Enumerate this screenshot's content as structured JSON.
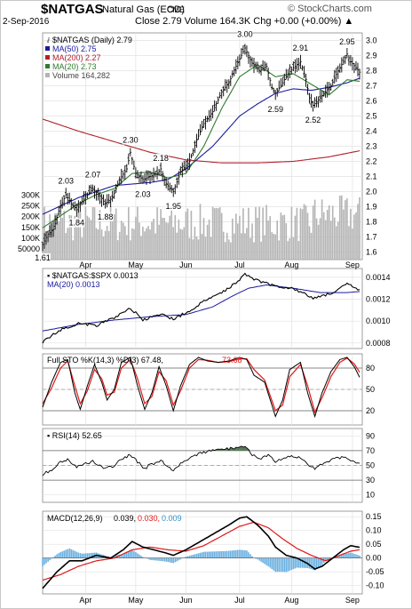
{
  "header": {
    "symbol": "$NATGAS",
    "name": "Natural Gas (EOD)",
    "exchange": "CME",
    "watermark": "© StockCharts.com",
    "date": "2-Sep-2016",
    "stats": "Close 2.79   Volume 164.3K   Chg +0.00 (+0.00%) ▲"
  },
  "colors": {
    "price": "#000000",
    "ma50": "#1a1aa0",
    "ma200": "#b0202c",
    "ma20": "#2e7a2e",
    "volume": "#b4b4b4",
    "ratio": "#000000",
    "stoK": "#000000",
    "stoD": "#e01818",
    "rsi": "#000000",
    "macd": "#000000",
    "signal": "#e01818",
    "hist": "#6ab0e0"
  },
  "x_labels": [
    "Apr",
    "May",
    "Jun",
    "Jul",
    "Aug",
    "Sep"
  ],
  "chart_data": [
    {
      "type": "line",
      "panel": "price",
      "legend": [
        "$NATGAS (Daily) 2.79",
        "MA(50) 2.75",
        "MA(200) 2.27",
        "MA(20) 2.73",
        "Volume 164,282"
      ],
      "yticks": [
        1.6,
        1.7,
        1.8,
        1.9,
        2.0,
        2.1,
        2.2,
        2.3,
        2.4,
        2.5,
        2.6,
        2.7,
        2.8,
        2.9,
        3.0
      ],
      "ylim": [
        1.55,
        3.05
      ],
      "volume_ticks": [
        "300K",
        "250K",
        "200K",
        "150K",
        "100K",
        "50000"
      ],
      "volume_tick_values": [
        300000,
        250000,
        200000,
        150000,
        100000,
        50000
      ],
      "volume_max": 360000,
      "annotations": [
        {
          "label": "1.61",
          "i": 0,
          "v": 1.61,
          "pos": "below"
        },
        {
          "label": "2.03",
          "i": 13,
          "v": 2.03,
          "pos": "above"
        },
        {
          "label": "1.84",
          "i": 19,
          "v": 1.84,
          "pos": "below"
        },
        {
          "label": "2.07",
          "i": 28,
          "v": 2.07,
          "pos": "above"
        },
        {
          "label": "1.88",
          "i": 35,
          "v": 1.88,
          "pos": "below"
        },
        {
          "label": "2.30",
          "i": 49,
          "v": 2.3,
          "pos": "above"
        },
        {
          "label": "2.03",
          "i": 56,
          "v": 2.03,
          "pos": "below"
        },
        {
          "label": "2.18",
          "i": 66,
          "v": 2.18,
          "pos": "above"
        },
        {
          "label": "1.95",
          "i": 73,
          "v": 1.95,
          "pos": "below"
        },
        {
          "label": "3.00",
          "i": 113,
          "v": 3.0,
          "pos": "above"
        },
        {
          "label": "2.59",
          "i": 130,
          "v": 2.59,
          "pos": "below"
        },
        {
          "label": "2.91",
          "i": 144,
          "v": 2.91,
          "pos": "above"
        },
        {
          "label": "2.52",
          "i": 151,
          "v": 2.52,
          "pos": "below"
        },
        {
          "label": "2.95",
          "i": 170,
          "v": 2.95,
          "pos": "above"
        }
      ],
      "anchors": [
        [
          0,
          1.65
        ],
        [
          3,
          1.72
        ],
        [
          6,
          1.75
        ],
        [
          9,
          1.87
        ],
        [
          13,
          1.98
        ],
        [
          16,
          1.92
        ],
        [
          19,
          1.88
        ],
        [
          23,
          1.95
        ],
        [
          28,
          2.02
        ],
        [
          32,
          1.97
        ],
        [
          35,
          1.92
        ],
        [
          39,
          1.96
        ],
        [
          43,
          2.08
        ],
        [
          47,
          2.15
        ],
        [
          49,
          2.26
        ],
        [
          52,
          2.12
        ],
        [
          56,
          2.08
        ],
        [
          60,
          2.1
        ],
        [
          64,
          2.12
        ],
        [
          66,
          2.15
        ],
        [
          69,
          2.05
        ],
        [
          73,
          2.0
        ],
        [
          77,
          2.13
        ],
        [
          82,
          2.2
        ],
        [
          86,
          2.34
        ],
        [
          90,
          2.45
        ],
        [
          95,
          2.53
        ],
        [
          100,
          2.66
        ],
        [
          104,
          2.72
        ],
        [
          108,
          2.83
        ],
        [
          113,
          2.95
        ],
        [
          117,
          2.85
        ],
        [
          121,
          2.8
        ],
        [
          125,
          2.83
        ],
        [
          128,
          2.69
        ],
        [
          130,
          2.65
        ],
        [
          134,
          2.72
        ],
        [
          137,
          2.78
        ],
        [
          140,
          2.82
        ],
        [
          144,
          2.86
        ],
        [
          147,
          2.74
        ],
        [
          149,
          2.62
        ],
        [
          151,
          2.57
        ],
        [
          155,
          2.62
        ],
        [
          158,
          2.66
        ],
        [
          161,
          2.7
        ],
        [
          165,
          2.8
        ],
        [
          168,
          2.86
        ],
        [
          170,
          2.91
        ],
        [
          172,
          2.86
        ],
        [
          175,
          2.82
        ],
        [
          177,
          2.79
        ]
      ],
      "ma50": [
        [
          0,
          1.85
        ],
        [
          20,
          1.96
        ],
        [
          40,
          2.04
        ],
        [
          60,
          2.06
        ],
        [
          70,
          2.08
        ],
        [
          80,
          2.15
        ],
        [
          95,
          2.3
        ],
        [
          110,
          2.5
        ],
        [
          120,
          2.58
        ],
        [
          130,
          2.65
        ],
        [
          140,
          2.68
        ],
        [
          150,
          2.67
        ],
        [
          160,
          2.69
        ],
        [
          170,
          2.72
        ],
        [
          177,
          2.75
        ]
      ],
      "ma200": [
        [
          0,
          2.48
        ],
        [
          20,
          2.4
        ],
        [
          40,
          2.33
        ],
        [
          60,
          2.26
        ],
        [
          80,
          2.21
        ],
        [
          100,
          2.19
        ],
        [
          120,
          2.19
        ],
        [
          140,
          2.2
        ],
        [
          160,
          2.23
        ],
        [
          177,
          2.27
        ]
      ],
      "ma20": [
        [
          0,
          1.76
        ],
        [
          10,
          1.84
        ],
        [
          20,
          1.92
        ],
        [
          30,
          1.98
        ],
        [
          40,
          2.02
        ],
        [
          50,
          2.12
        ],
        [
          60,
          2.13
        ],
        [
          70,
          2.09
        ],
        [
          80,
          2.12
        ],
        [
          90,
          2.3
        ],
        [
          100,
          2.55
        ],
        [
          110,
          2.76
        ],
        [
          120,
          2.84
        ],
        [
          130,
          2.76
        ],
        [
          140,
          2.78
        ],
        [
          150,
          2.71
        ],
        [
          160,
          2.64
        ],
        [
          170,
          2.74
        ],
        [
          177,
          2.73
        ]
      ]
    },
    {
      "type": "line",
      "panel": "ratio",
      "legend": [
        "$NATGAS:$SPX 0.0013",
        "MA(20) 0.0013"
      ],
      "yticks": [
        0.0008,
        0.001,
        0.0012,
        0.0014
      ],
      "yticklabels": [
        "0.0008",
        "0.0010",
        "0.0012",
        "0.0014"
      ],
      "ylim": [
        0.00075,
        0.00148
      ],
      "anchors": [
        [
          0,
          0.00081
        ],
        [
          10,
          0.00092
        ],
        [
          20,
          0.00098
        ],
        [
          30,
          0.00096
        ],
        [
          40,
          0.00103
        ],
        [
          49,
          0.00112
        ],
        [
          56,
          0.00101
        ],
        [
          66,
          0.00106
        ],
        [
          73,
          0.00102
        ],
        [
          82,
          0.00109
        ],
        [
          90,
          0.00118
        ],
        [
          100,
          0.00126
        ],
        [
          108,
          0.00135
        ],
        [
          113,
          0.00143
        ],
        [
          120,
          0.00137
        ],
        [
          130,
          0.00132
        ],
        [
          140,
          0.0013
        ],
        [
          147,
          0.00124
        ],
        [
          151,
          0.00121
        ],
        [
          158,
          0.00124
        ],
        [
          165,
          0.00128
        ],
        [
          170,
          0.00134
        ],
        [
          177,
          0.00128
        ]
      ],
      "ma": [
        [
          0,
          0.00091
        ],
        [
          20,
          0.00097
        ],
        [
          40,
          0.00101
        ],
        [
          60,
          0.00104
        ],
        [
          80,
          0.00106
        ],
        [
          95,
          0.00113
        ],
        [
          105,
          0.00122
        ],
        [
          115,
          0.0013
        ],
        [
          125,
          0.00133
        ],
        [
          140,
          0.0013
        ],
        [
          155,
          0.00126
        ],
        [
          170,
          0.00126
        ],
        [
          177,
          0.00127
        ]
      ]
    },
    {
      "type": "line",
      "panel": "stochastic",
      "legend": [
        "Full STO %K(14,3) %D(3) 67.48,",
        "73.68"
      ],
      "yticks": [
        20,
        50,
        80
      ],
      "ylim": [
        0,
        100
      ],
      "hlines": [
        80,
        50,
        20
      ],
      "k": [
        [
          0,
          25
        ],
        [
          5,
          60
        ],
        [
          10,
          88
        ],
        [
          14,
          92
        ],
        [
          18,
          45
        ],
        [
          21,
          22
        ],
        [
          25,
          55
        ],
        [
          29,
          85
        ],
        [
          33,
          60
        ],
        [
          36,
          35
        ],
        [
          40,
          50
        ],
        [
          44,
          88
        ],
        [
          49,
          95
        ],
        [
          53,
          55
        ],
        [
          57,
          22
        ],
        [
          61,
          45
        ],
        [
          65,
          82
        ],
        [
          69,
          55
        ],
        [
          73,
          20
        ],
        [
          77,
          55
        ],
        [
          82,
          85
        ],
        [
          87,
          95
        ],
        [
          92,
          90
        ],
        [
          98,
          88
        ],
        [
          104,
          90
        ],
        [
          110,
          95
        ],
        [
          114,
          92
        ],
        [
          118,
          70
        ],
        [
          124,
          60
        ],
        [
          130,
          12
        ],
        [
          134,
          35
        ],
        [
          138,
          78
        ],
        [
          144,
          88
        ],
        [
          148,
          45
        ],
        [
          152,
          12
        ],
        [
          156,
          45
        ],
        [
          161,
          75
        ],
        [
          166,
          92
        ],
        [
          170,
          95
        ],
        [
          174,
          82
        ],
        [
          177,
          67
        ]
      ],
      "d": [
        [
          0,
          30
        ],
        [
          5,
          52
        ],
        [
          10,
          80
        ],
        [
          14,
          90
        ],
        [
          18,
          55
        ],
        [
          21,
          30
        ],
        [
          25,
          48
        ],
        [
          29,
          78
        ],
        [
          33,
          65
        ],
        [
          36,
          42
        ],
        [
          40,
          46
        ],
        [
          44,
          80
        ],
        [
          49,
          92
        ],
        [
          53,
          65
        ],
        [
          57,
          30
        ],
        [
          61,
          40
        ],
        [
          65,
          75
        ],
        [
          69,
          62
        ],
        [
          73,
          28
        ],
        [
          77,
          48
        ],
        [
          82,
          80
        ],
        [
          87,
          92
        ],
        [
          92,
          91
        ],
        [
          98,
          88
        ],
        [
          104,
          89
        ],
        [
          110,
          93
        ],
        [
          114,
          93
        ],
        [
          118,
          78
        ],
        [
          124,
          63
        ],
        [
          130,
          20
        ],
        [
          134,
          28
        ],
        [
          138,
          68
        ],
        [
          144,
          85
        ],
        [
          148,
          55
        ],
        [
          152,
          18
        ],
        [
          156,
          38
        ],
        [
          161,
          68
        ],
        [
          166,
          88
        ],
        [
          170,
          94
        ],
        [
          174,
          86
        ],
        [
          177,
          74
        ]
      ]
    },
    {
      "type": "line",
      "panel": "rsi",
      "legend": [
        "RSI(14) 52.65"
      ],
      "yticks": [
        10,
        30,
        50,
        70,
        90
      ],
      "ylim": [
        0,
        100
      ],
      "hlines": [
        70,
        50,
        30
      ],
      "values": [
        [
          0,
          38
        ],
        [
          6,
          45
        ],
        [
          10,
          55
        ],
        [
          14,
          58
        ],
        [
          19,
          48
        ],
        [
          24,
          52
        ],
        [
          28,
          56
        ],
        [
          32,
          50
        ],
        [
          35,
          45
        ],
        [
          40,
          50
        ],
        [
          44,
          58
        ],
        [
          49,
          64
        ],
        [
          53,
          55
        ],
        [
          57,
          46
        ],
        [
          61,
          52
        ],
        [
          66,
          56
        ],
        [
          70,
          48
        ],
        [
          73,
          44
        ],
        [
          78,
          55
        ],
        [
          84,
          62
        ],
        [
          90,
          68
        ],
        [
          96,
          70
        ],
        [
          102,
          72
        ],
        [
          108,
          74
        ],
        [
          113,
          76
        ],
        [
          117,
          65
        ],
        [
          122,
          60
        ],
        [
          126,
          63
        ],
        [
          130,
          55
        ],
        [
          134,
          58
        ],
        [
          138,
          62
        ],
        [
          144,
          60
        ],
        [
          148,
          52
        ],
        [
          152,
          46
        ],
        [
          156,
          52
        ],
        [
          162,
          58
        ],
        [
          168,
          62
        ],
        [
          172,
          58
        ],
        [
          177,
          53
        ]
      ]
    },
    {
      "type": "line",
      "panel": "macd",
      "legend": [
        "MACD(12,26,9)",
        "0.039,",
        "0.030,",
        "0.009"
      ],
      "yticks": [
        -0.1,
        -0.05,
        0.0,
        0.05,
        0.1,
        0.15
      ],
      "yticklabels": [
        "-0.10",
        "-0.05",
        "0.00",
        "0.05",
        "0.10",
        "0.15"
      ],
      "ylim": [
        -0.13,
        0.17
      ],
      "macd": [
        [
          0,
          -0.11
        ],
        [
          8,
          -0.05
        ],
        [
          15,
          -0.01
        ],
        [
          22,
          -0.01
        ],
        [
          30,
          0.01
        ],
        [
          38,
          0.0
        ],
        [
          45,
          0.03
        ],
        [
          50,
          0.06
        ],
        [
          56,
          0.04
        ],
        [
          62,
          0.03
        ],
        [
          68,
          0.02
        ],
        [
          73,
          0.01
        ],
        [
          80,
          0.03
        ],
        [
          88,
          0.06
        ],
        [
          96,
          0.09
        ],
        [
          104,
          0.12
        ],
        [
          110,
          0.145
        ],
        [
          114,
          0.15
        ],
        [
          120,
          0.12
        ],
        [
          126,
          0.08
        ],
        [
          130,
          0.04
        ],
        [
          136,
          0.01
        ],
        [
          142,
          0.0
        ],
        [
          148,
          -0.02
        ],
        [
          152,
          -0.04
        ],
        [
          156,
          -0.03
        ],
        [
          162,
          0.0
        ],
        [
          168,
          0.03
        ],
        [
          172,
          0.045
        ],
        [
          177,
          0.039
        ]
      ],
      "signal": [
        [
          0,
          -0.08
        ],
        [
          10,
          -0.06
        ],
        [
          20,
          -0.03
        ],
        [
          30,
          -0.01
        ],
        [
          40,
          0.0
        ],
        [
          50,
          0.03
        ],
        [
          60,
          0.04
        ],
        [
          70,
          0.03
        ],
        [
          80,
          0.025
        ],
        [
          90,
          0.045
        ],
        [
          100,
          0.08
        ],
        [
          110,
          0.115
        ],
        [
          118,
          0.13
        ],
        [
          126,
          0.11
        ],
        [
          134,
          0.07
        ],
        [
          142,
          0.035
        ],
        [
          150,
          0.01
        ],
        [
          158,
          -0.01
        ],
        [
          166,
          0.01
        ],
        [
          172,
          0.025
        ],
        [
          177,
          0.03
        ]
      ]
    }
  ]
}
